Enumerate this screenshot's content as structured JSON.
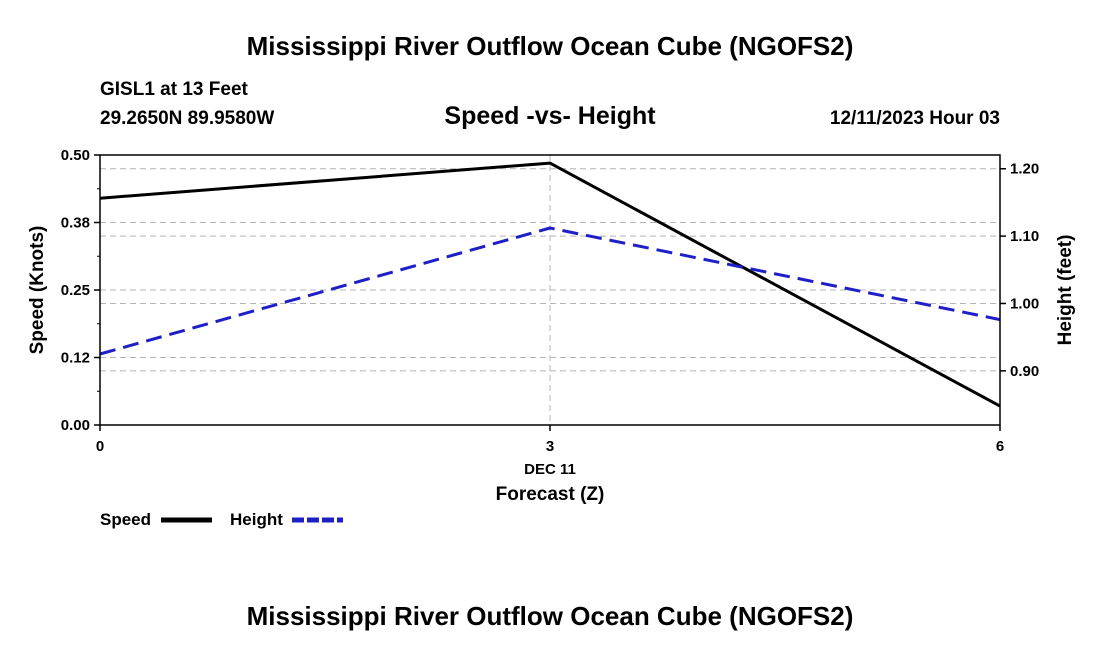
{
  "header": {
    "title": "Mississippi River Outflow Ocean Cube (NGOFS2)",
    "station": "GISL1 at 13 Feet",
    "coords": "29.2650N  89.9580W",
    "subtitle": "Speed -vs- Height",
    "datetime": "12/11/2023 Hour 03"
  },
  "footer": {
    "title": "Mississippi River Outflow Ocean Cube (NGOFS2)"
  },
  "legend": {
    "speed_label": "Speed",
    "height_label": "Height"
  },
  "colors": {
    "speed": "#000000",
    "height": "#1f1fc8",
    "grid": "#b4b4b4"
  },
  "chart_data": {
    "type": "line",
    "title": "Speed -vs- Height",
    "x": [
      0,
      3,
      6
    ],
    "x_tick_labels": [
      "0",
      "3",
      "6"
    ],
    "x_date_label": "DEC 11",
    "xlabel": "Forecast (Z)",
    "xlim": [
      0,
      6
    ],
    "ylabel": "Speed (Knots)",
    "ylim": [
      0,
      0.5
    ],
    "y_ticks": [
      0.0,
      0.125,
      0.25,
      0.375,
      0.5
    ],
    "y_tick_labels": [
      "0.00",
      "0.12",
      "0.25",
      "0.38",
      "0.50"
    ],
    "y2label": "Height (feet)",
    "y2lim": [
      0.8196,
      1.2204
    ],
    "y2_ticks": [
      0.9,
      1.0,
      1.1,
      1.2
    ],
    "y2_tick_labels": [
      "0.90",
      "1.00",
      "1.10",
      "1.20"
    ],
    "grid": true,
    "legend_position": "bottom-left",
    "series": [
      {
        "name": "Speed",
        "axis": "left",
        "style": "solid",
        "values": [
          0.42,
          0.485,
          0.035
        ]
      },
      {
        "name": "Height",
        "axis": "right",
        "style": "dashed",
        "values": [
          0.925,
          1.112,
          0.976
        ]
      }
    ]
  }
}
